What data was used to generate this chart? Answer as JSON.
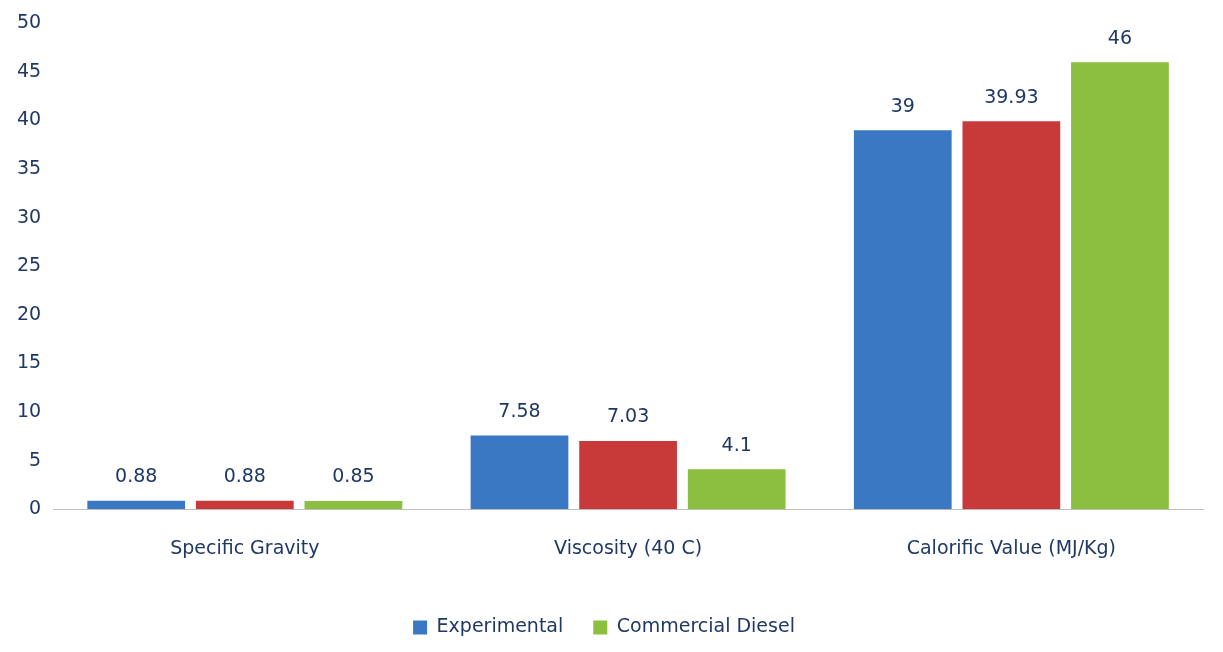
{
  "chart_data": {
    "type": "bar",
    "categories": [
      "Specific Gravity",
      "Viscosity (40 C)",
      "Calorific Value (MJ/Kg)"
    ],
    "series": [
      {
        "name": "Experimental",
        "color": "#3a78c3",
        "values": [
          0.88,
          7.58,
          39
        ]
      },
      {
        "color": "#c83a3a",
        "values": [
          0.88,
          7.03,
          39.93
        ]
      },
      {
        "name": "Commercial Diesel",
        "color": "#8cbf3f",
        "values": [
          0.85,
          4.1,
          46
        ]
      }
    ],
    "ylim": [
      0,
      50
    ],
    "yticks": [
      0,
      5,
      10,
      15,
      20,
      25,
      30,
      35,
      40,
      45,
      50
    ],
    "grid": false,
    "legend": "bottom",
    "data_labels": true
  }
}
